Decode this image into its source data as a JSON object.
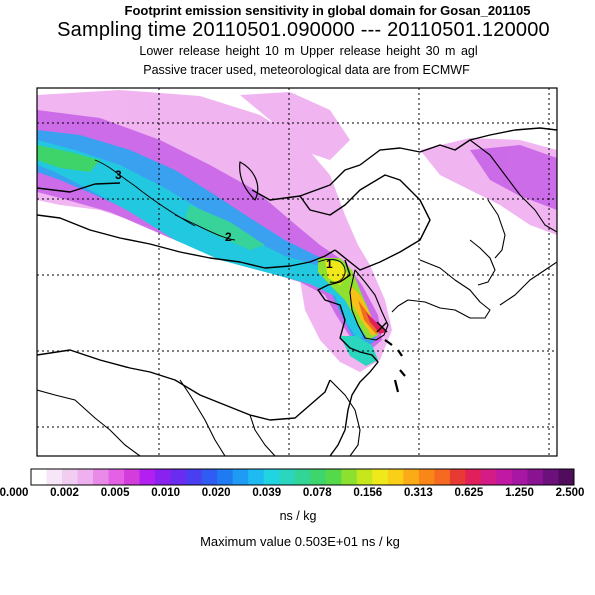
{
  "titles": {
    "line1": "Footprint emission sensitivity in global domain for Gosan_201105",
    "line2": "Sampling time   20110501.090000 --- 20110501.120000",
    "line3": "Lower release height   10 m      Upper release height   30 m    agl",
    "line4": "Passive tracer used, meteorological data are from ECMWF"
  },
  "contour_labels": [
    "3",
    "2",
    "1"
  ],
  "colorbar": {
    "ticks": [
      "0.000",
      "0.002",
      "0.005",
      "0.010",
      "0.020",
      "0.039",
      "0.078",
      "0.156",
      "0.313",
      "0.625",
      "1.250",
      "2.500"
    ],
    "colors": [
      "#ffffff",
      "#f7e6f7",
      "#f1cdf1",
      "#eeb0ee",
      "#e98ae9",
      "#e660e6",
      "#d33ddc",
      "#b21ff0",
      "#8a22ef",
      "#6a2cf0",
      "#4a3ff0",
      "#2f5cf2",
      "#1f7bf2",
      "#1e9cf3",
      "#1ebbf2",
      "#20d4e2",
      "#2ad6be",
      "#33d596",
      "#3ed56d",
      "#55d84a",
      "#8ce02f",
      "#c6e61e",
      "#efe81a",
      "#f9cf18",
      "#fbab16",
      "#f98717",
      "#f56a20",
      "#e63a33",
      "#e01f5b",
      "#d41b86",
      "#c119a3",
      "#a817a4",
      "#8a1392",
      "#6c107b",
      "#4f0d5c"
    ],
    "unit": "ns / kg"
  },
  "maximum": "Maximum value  0.503E+01 ns / kg"
}
